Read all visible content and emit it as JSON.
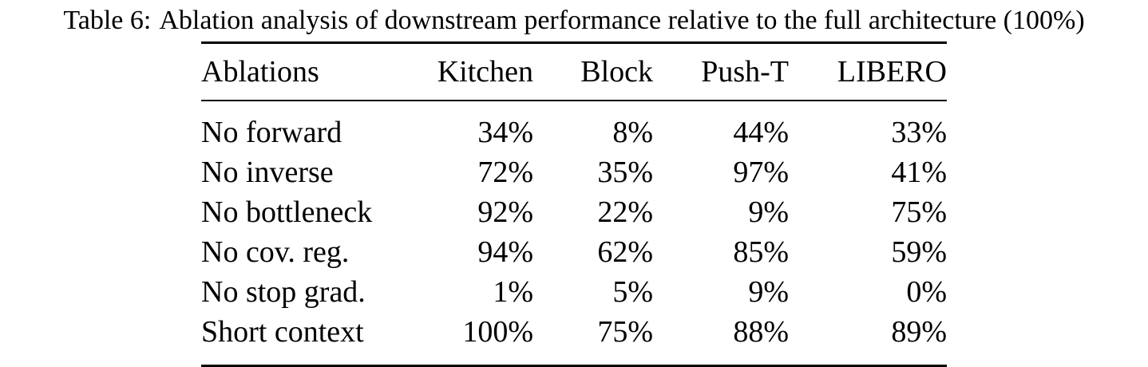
{
  "caption": {
    "label": "Table 6:",
    "text": "Ablation analysis of downstream performance relative to the full architecture (100%)"
  },
  "table": {
    "headers": [
      "Ablations",
      "Kitchen",
      "Block",
      "Push-T",
      "LIBERO"
    ],
    "rows": [
      [
        "No forward",
        "34%",
        "8%",
        "44%",
        "33%"
      ],
      [
        "No inverse",
        "72%",
        "35%",
        "97%",
        "41%"
      ],
      [
        "No bottleneck",
        "92%",
        "22%",
        "9%",
        "75%"
      ],
      [
        "No cov. reg.",
        "94%",
        "62%",
        "85%",
        "59%"
      ],
      [
        "No stop grad.",
        "1%",
        "5%",
        "9%",
        "0%"
      ],
      [
        "Short context",
        "100%",
        "75%",
        "88%",
        "89%"
      ]
    ]
  }
}
